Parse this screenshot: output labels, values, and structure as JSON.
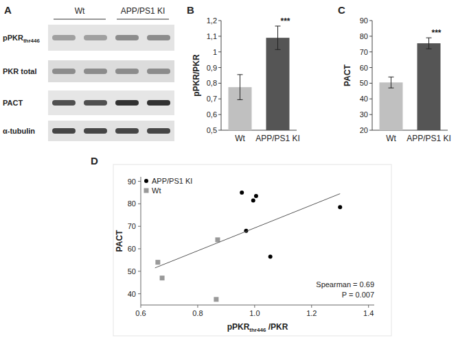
{
  "chart_data": [
    {
      "type": "blot",
      "title": "A",
      "categories": [
        "Wt",
        "APP/PS1 KI"
      ],
      "rows": [
        {
          "text": "pPKR",
          "subscript": "thr446"
        },
        {
          "text": "PKR total"
        },
        {
          "text": "PACT"
        },
        {
          "text": "α-tubulin"
        }
      ]
    },
    {
      "type": "bar",
      "title": "B",
      "categories": [
        "Wt",
        "APP/PS1 KI"
      ],
      "values": [
        0.775,
        1.09
      ],
      "errors": [
        0.08,
        0.075
      ],
      "colors": [
        "#c0c0c0",
        "#555555"
      ],
      "ylabel": "pPKR/PKR",
      "ylim": [
        0.5,
        1.2
      ],
      "yticks": [
        {
          "value": 0.5,
          "label": "0,5"
        },
        {
          "value": 0.6,
          "label": "0,6"
        },
        {
          "value": 0.7,
          "label": "0,7"
        },
        {
          "value": 0.8,
          "label": "0,8"
        },
        {
          "value": 0.9,
          "label": "0,9"
        },
        1,
        {
          "value": 1.1,
          "label": "1,1"
        },
        {
          "value": 1.2,
          "label": "1,2"
        }
      ],
      "annotations": [
        {
          "text": "***",
          "category": 1
        }
      ]
    },
    {
      "type": "bar",
      "title": "C",
      "categories": [
        "Wt",
        "APP/PS1 KI"
      ],
      "values": [
        50.5,
        75.5
      ],
      "errors": [
        3.5,
        3.5
      ],
      "colors": [
        "#c0c0c0",
        "#555555"
      ],
      "ylabel": "PACT",
      "ylim": [
        20,
        90
      ],
      "yticks": [
        20,
        30,
        40,
        50,
        60,
        70,
        80,
        90
      ],
      "annotations": [
        {
          "text": "***",
          "category": 1
        }
      ]
    },
    {
      "type": "scatter",
      "title": "D",
      "ylabel": "PACT",
      "xlabel": [
        {
          "text": "pPKR"
        },
        {
          "text": "thr446",
          "subscript": true
        },
        {
          "text": " /PKR"
        }
      ],
      "xlim": [
        0.6,
        1.42
      ],
      "xticks": [
        0.6,
        0.8,
        {
          "value": 1,
          "label": "1.0"
        },
        1.2,
        1.4
      ],
      "ylim": [
        35,
        92
      ],
      "yticks": [
        40,
        50,
        60,
        70,
        80,
        90
      ],
      "legend": "top-left",
      "series": [
        {
          "name": "APP/PS1 KI",
          "color": "#000000",
          "marker": "circle",
          "x": [
            0.955,
            0.995,
            1.005,
            0.97,
            1.055,
            1.3
          ],
          "values": [
            85,
            81.5,
            83.5,
            68,
            56.5,
            78.5
          ]
        },
        {
          "name": "Wt",
          "color": "#999999",
          "marker": "square",
          "x": [
            0.66,
            0.675,
            0.87,
            0.865
          ],
          "values": [
            54,
            47,
            64,
            37.5
          ]
        },
        {
          "type": "line",
          "color": "#555555",
          "x": [
            0.65,
            1.3
          ],
          "values": [
            51.5,
            84.5
          ]
        }
      ],
      "annotations": [
        "Spearman = 0.69",
        "P = 0.007"
      ]
    }
  ]
}
